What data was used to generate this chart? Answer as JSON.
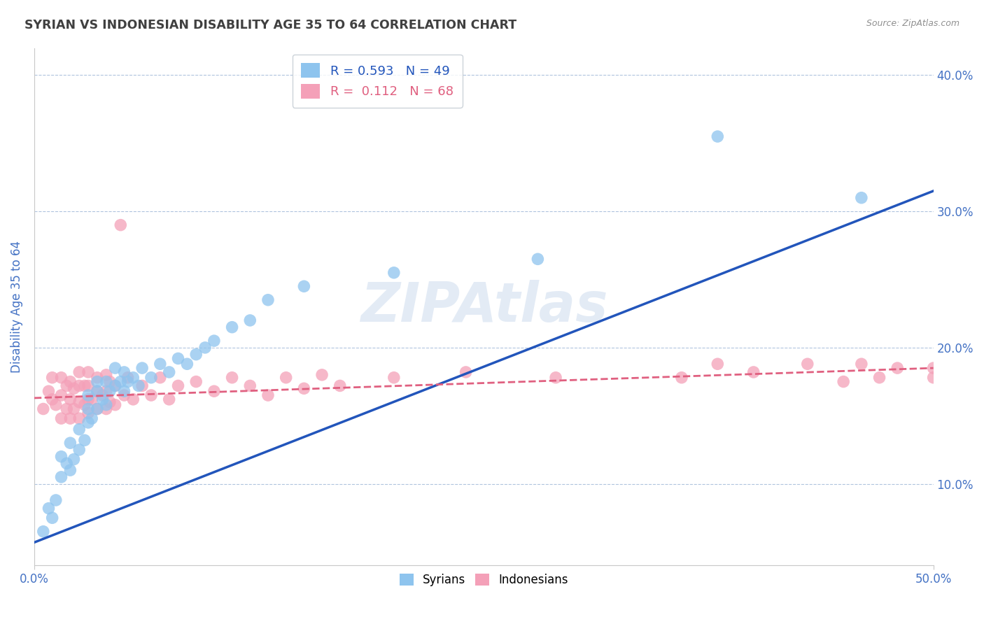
{
  "title": "SYRIAN VS INDONESIAN DISABILITY AGE 35 TO 64 CORRELATION CHART",
  "source": "Source: ZipAtlas.com",
  "ylabel": "Disability Age 35 to 64",
  "xlim": [
    0.0,
    0.5
  ],
  "ylim": [
    0.04,
    0.42
  ],
  "xtick_positions": [
    0.0,
    0.5
  ],
  "xtick_labels": [
    "0.0%",
    "50.0%"
  ],
  "yticks": [
    0.1,
    0.2,
    0.3,
    0.4
  ],
  "ytick_labels": [
    "10.0%",
    "20.0%",
    "30.0%",
    "40.0%"
  ],
  "R_syrian": 0.593,
  "N_syrian": 49,
  "R_indonesian": 0.112,
  "N_indonesian": 68,
  "syrian_color": "#8EC4EE",
  "indonesian_color": "#F4A0B8",
  "syrian_line_color": "#2255BB",
  "indonesian_line_color": "#E06080",
  "watermark_text": "ZIPAtlas",
  "syrian_line_start_y": 0.057,
  "syrian_line_end_y": 0.315,
  "indonesian_line_start_y": 0.163,
  "indonesian_line_end_y": 0.185,
  "syrian_x": [
    0.005,
    0.008,
    0.01,
    0.012,
    0.015,
    0.015,
    0.018,
    0.02,
    0.02,
    0.022,
    0.025,
    0.025,
    0.028,
    0.03,
    0.03,
    0.03,
    0.032,
    0.035,
    0.035,
    0.035,
    0.038,
    0.04,
    0.04,
    0.042,
    0.045,
    0.045,
    0.048,
    0.05,
    0.05,
    0.052,
    0.055,
    0.058,
    0.06,
    0.065,
    0.07,
    0.075,
    0.08,
    0.085,
    0.09,
    0.095,
    0.1,
    0.11,
    0.12,
    0.13,
    0.15,
    0.2,
    0.28,
    0.38,
    0.46
  ],
  "syrian_y": [
    0.065,
    0.082,
    0.075,
    0.088,
    0.105,
    0.12,
    0.115,
    0.11,
    0.13,
    0.118,
    0.125,
    0.14,
    0.132,
    0.145,
    0.155,
    0.165,
    0.148,
    0.155,
    0.168,
    0.175,
    0.162,
    0.158,
    0.175,
    0.168,
    0.172,
    0.185,
    0.175,
    0.168,
    0.182,
    0.175,
    0.178,
    0.172,
    0.185,
    0.178,
    0.188,
    0.182,
    0.192,
    0.188,
    0.195,
    0.2,
    0.205,
    0.215,
    0.22,
    0.235,
    0.245,
    0.255,
    0.265,
    0.355,
    0.31
  ],
  "indonesian_x": [
    0.005,
    0.008,
    0.01,
    0.01,
    0.012,
    0.015,
    0.015,
    0.015,
    0.018,
    0.018,
    0.02,
    0.02,
    0.02,
    0.022,
    0.022,
    0.025,
    0.025,
    0.025,
    0.025,
    0.028,
    0.028,
    0.03,
    0.03,
    0.03,
    0.03,
    0.032,
    0.035,
    0.035,
    0.035,
    0.038,
    0.04,
    0.04,
    0.04,
    0.042,
    0.042,
    0.045,
    0.045,
    0.048,
    0.05,
    0.052,
    0.055,
    0.06,
    0.065,
    0.07,
    0.075,
    0.08,
    0.09,
    0.1,
    0.11,
    0.12,
    0.13,
    0.14,
    0.15,
    0.16,
    0.17,
    0.2,
    0.24,
    0.29,
    0.36,
    0.38,
    0.4,
    0.43,
    0.45,
    0.46,
    0.47,
    0.48,
    0.5,
    0.5
  ],
  "indonesian_y": [
    0.155,
    0.168,
    0.162,
    0.178,
    0.158,
    0.148,
    0.165,
    0.178,
    0.155,
    0.172,
    0.148,
    0.162,
    0.175,
    0.155,
    0.17,
    0.148,
    0.16,
    0.172,
    0.182,
    0.158,
    0.172,
    0.152,
    0.162,
    0.172,
    0.182,
    0.162,
    0.155,
    0.168,
    0.178,
    0.165,
    0.155,
    0.168,
    0.18,
    0.16,
    0.175,
    0.158,
    0.172,
    0.29,
    0.165,
    0.178,
    0.162,
    0.172,
    0.165,
    0.178,
    0.162,
    0.172,
    0.175,
    0.168,
    0.178,
    0.172,
    0.165,
    0.178,
    0.17,
    0.18,
    0.172,
    0.178,
    0.182,
    0.178,
    0.178,
    0.188,
    0.182,
    0.188,
    0.175,
    0.188,
    0.178,
    0.185,
    0.178,
    0.185
  ]
}
